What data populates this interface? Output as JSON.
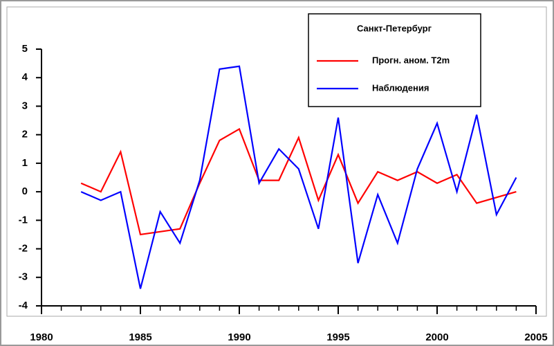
{
  "chart_data": {
    "type": "line",
    "legend_title": "Санкт-Петербург",
    "x": [
      1982,
      1983,
      1984,
      1985,
      1986,
      1987,
      1988,
      1989,
      1990,
      1991,
      1992,
      1993,
      1994,
      1995,
      1996,
      1997,
      1998,
      1999,
      2000,
      2001,
      2002,
      2003,
      2004
    ],
    "series": [
      {
        "name": "Прогн. аном. T2m",
        "color": "#ff0000",
        "values": [
          0.3,
          0.0,
          1.4,
          -1.5,
          -1.4,
          -1.3,
          0.3,
          1.8,
          2.2,
          0.4,
          0.4,
          1.9,
          -0.3,
          1.3,
          -0.4,
          0.7,
          0.4,
          0.7,
          0.3,
          0.6,
          -0.4,
          -0.2,
          0.0
        ]
      },
      {
        "name": "Наблюдения",
        "color": "#0000ff",
        "values": [
          0.0,
          -0.3,
          0.0,
          -3.4,
          -0.7,
          -1.8,
          0.4,
          4.3,
          4.4,
          0.3,
          1.5,
          0.8,
          -1.3,
          2.6,
          -2.5,
          -0.1,
          -1.8,
          0.8,
          2.4,
          0.0,
          2.7,
          -0.8,
          0.5
        ]
      }
    ],
    "xlim": [
      1980,
      2005
    ],
    "xticks": [
      1980,
      1985,
      1990,
      1995,
      2000,
      2005
    ],
    "ylim": [
      -4,
      5
    ],
    "yticks": [
      -4,
      -3,
      -2,
      -1,
      0,
      1,
      2,
      3,
      4,
      5
    ],
    "legend_position": "top-right"
  }
}
